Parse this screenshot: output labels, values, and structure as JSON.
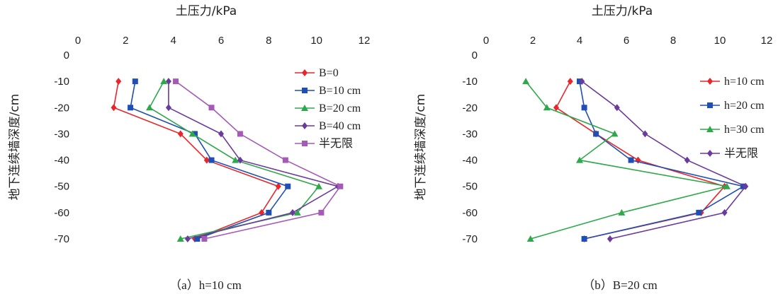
{
  "chart_data": [
    {
      "type": "line",
      "xlabel": "土压力/kPa",
      "ylabel": "地下连续墙深度/cm",
      "xlim": [
        0,
        12
      ],
      "ylim": [
        -70,
        0
      ],
      "xticks": [
        "0",
        "2",
        "4",
        "6",
        "8",
        "10",
        "12"
      ],
      "yticks": [
        "0",
        "-10",
        "-20",
        "-30",
        "-40",
        "-50",
        "-60",
        "-70"
      ],
      "caption": "（a）h=10 cm",
      "legend_position": "top-right",
      "series": [
        {
          "name": "B=0",
          "color": "#e8262b",
          "marker": "diamond",
          "points": [
            [
              1.7,
              -10
            ],
            [
              1.5,
              -20
            ],
            [
              4.3,
              -30
            ],
            [
              5.4,
              -40
            ],
            [
              8.4,
              -50
            ],
            [
              7.7,
              -60
            ],
            [
              4.9,
              -70
            ]
          ]
        },
        {
          "name": "B=10 cm",
          "color": "#1f4fb4",
          "marker": "square",
          "points": [
            [
              2.4,
              -10
            ],
            [
              2.2,
              -20
            ],
            [
              4.9,
              -30
            ],
            [
              5.6,
              -40
            ],
            [
              8.8,
              -50
            ],
            [
              8.0,
              -60
            ],
            [
              5.0,
              -70
            ]
          ]
        },
        {
          "name": "B=20 cm",
          "color": "#2ea84a",
          "marker": "triangle",
          "points": [
            [
              3.6,
              -10
            ],
            [
              3.0,
              -20
            ],
            [
              4.8,
              -30
            ],
            [
              6.6,
              -40
            ],
            [
              10.1,
              -50
            ],
            [
              9.2,
              -60
            ],
            [
              4.3,
              -70
            ]
          ]
        },
        {
          "name": "B=40 cm",
          "color": "#6a3a9c",
          "marker": "diamond",
          "points": [
            [
              3.8,
              -10
            ],
            [
              3.8,
              -20
            ],
            [
              6.0,
              -30
            ],
            [
              6.8,
              -40
            ],
            [
              10.9,
              -50
            ],
            [
              9.0,
              -60
            ],
            [
              4.6,
              -70
            ]
          ]
        },
        {
          "name": "半无限",
          "color": "#a65ab8",
          "marker": "square",
          "points": [
            [
              4.1,
              -10
            ],
            [
              5.6,
              -20
            ],
            [
              6.8,
              -30
            ],
            [
              8.7,
              -40
            ],
            [
              11.0,
              -50
            ],
            [
              10.2,
              -60
            ],
            [
              5.3,
              -70
            ]
          ]
        }
      ]
    },
    {
      "type": "line",
      "xlabel": "土压力/kPa",
      "ylabel": "地下连续墙深度/cm",
      "xlim": [
        0,
        12
      ],
      "ylim": [
        -70,
        0
      ],
      "xticks": [
        "0",
        "2",
        "4",
        "6",
        "8",
        "10",
        "12"
      ],
      "yticks": [
        "0",
        "-10",
        "-20",
        "-30",
        "-40",
        "-50",
        "-60",
        "-70"
      ],
      "caption": "（b）B=20 cm",
      "legend_position": "top-right",
      "series": [
        {
          "name": "h=10 cm",
          "color": "#e8262b",
          "marker": "diamond",
          "points": [
            [
              3.6,
              -10
            ],
            [
              3.0,
              -20
            ],
            [
              4.7,
              -30
            ],
            [
              6.5,
              -40
            ],
            [
              10.2,
              -50
            ],
            [
              9.2,
              -60
            ],
            [
              4.2,
              -70
            ]
          ]
        },
        {
          "name": "h=20 cm",
          "color": "#1f4fb4",
          "marker": "square",
          "points": [
            [
              4.0,
              -10
            ],
            [
              4.2,
              -20
            ],
            [
              4.7,
              -30
            ],
            [
              6.2,
              -40
            ],
            [
              11.0,
              -50
            ],
            [
              9.1,
              -60
            ],
            [
              4.2,
              -70
            ]
          ]
        },
        {
          "name": "h=30 cm",
          "color": "#2ea84a",
          "marker": "triangle",
          "points": [
            [
              1.7,
              -10
            ],
            [
              2.6,
              -20
            ],
            [
              5.5,
              -30
            ],
            [
              4.0,
              -40
            ],
            [
              10.3,
              -50
            ],
            [
              5.8,
              -60
            ],
            [
              1.9,
              -70
            ]
          ]
        },
        {
          "name": "半无限",
          "color": "#6a3a9c",
          "marker": "diamond",
          "points": [
            [
              4.1,
              -10
            ],
            [
              5.6,
              -20
            ],
            [
              6.8,
              -30
            ],
            [
              8.6,
              -40
            ],
            [
              11.1,
              -50
            ],
            [
              10.2,
              -60
            ],
            [
              5.3,
              -70
            ]
          ]
        }
      ]
    }
  ]
}
